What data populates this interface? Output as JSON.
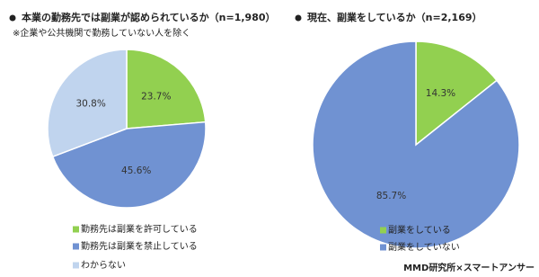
{
  "chart_data": [
    {
      "type": "pie",
      "title": "本業の勤務先では副業が認められているか（n=1,980）",
      "note": "※企業や公共機関で勤務していない人を除く",
      "categories": [
        "勤務先は副業を許可している",
        "勤務先は副業を禁止している",
        "わからない"
      ],
      "values": [
        23.7,
        45.6,
        30.8
      ],
      "value_labels": [
        "23.7%",
        "45.6%",
        "30.8%"
      ],
      "colors": [
        "#92d050",
        "#7092d2",
        "#c0d4ee"
      ]
    },
    {
      "type": "pie",
      "title": "現在、副業をしているか（n=2,169）",
      "categories": [
        "副業をしている",
        "副業をしていない"
      ],
      "values": [
        14.3,
        85.7
      ],
      "value_labels": [
        "14.3%",
        "85.7%"
      ],
      "colors": [
        "#92d050",
        "#7092d2"
      ]
    }
  ],
  "source": "MMD研究所×スマートアンサー"
}
